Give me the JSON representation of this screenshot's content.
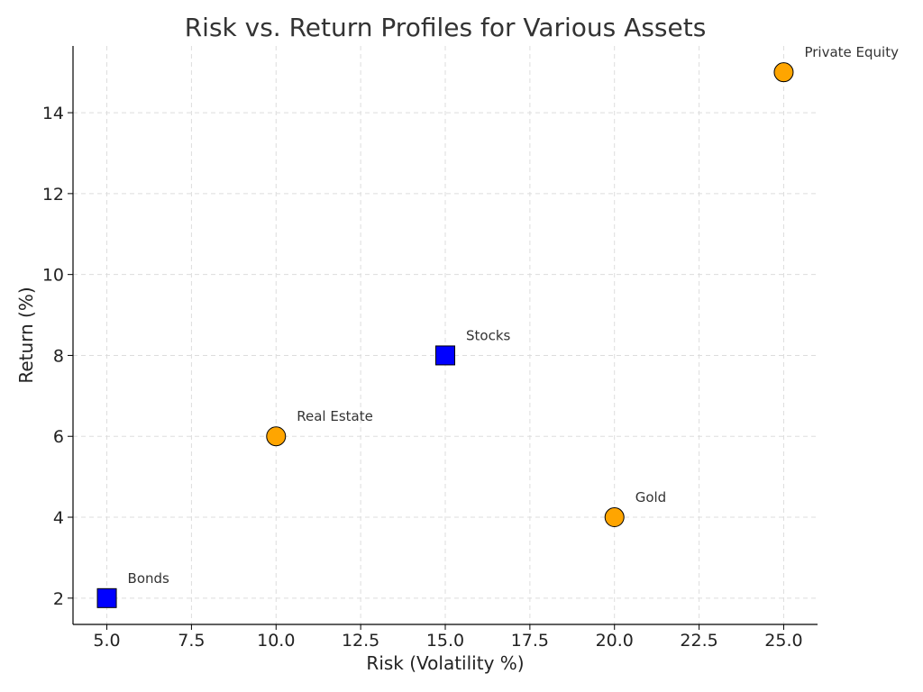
{
  "chart_data": {
    "type": "scatter",
    "title": "Risk vs. Return Profiles for Various Assets",
    "xlabel": "Risk (Volatility %)",
    "ylabel": "Return (%)",
    "xlim": [
      4.0,
      26.0
    ],
    "ylim": [
      1.35,
      15.65
    ],
    "xticks": [
      5.0,
      7.5,
      10.0,
      12.5,
      15.0,
      17.5,
      20.0,
      22.5,
      25.0
    ],
    "xtick_labels": [
      "5.0",
      "7.5",
      "10.0",
      "12.5",
      "15.0",
      "17.5",
      "20.0",
      "22.5",
      "25.0"
    ],
    "yticks": [
      2,
      4,
      6,
      8,
      10,
      12,
      14
    ],
    "ytick_labels": [
      "2",
      "4",
      "6",
      "8",
      "10",
      "12",
      "14"
    ],
    "grid": true,
    "points": [
      {
        "label": "Bonds",
        "x": 5,
        "y": 2,
        "marker": "square",
        "color": "#0000ff"
      },
      {
        "label": "Real Estate",
        "x": 10,
        "y": 6,
        "marker": "circle",
        "color": "#ffa500"
      },
      {
        "label": "Stocks",
        "x": 15,
        "y": 8,
        "marker": "square",
        "color": "#0000ff"
      },
      {
        "label": "Gold",
        "x": 20,
        "y": 4,
        "marker": "circle",
        "color": "#ffa500"
      },
      {
        "label": "Private Equity",
        "x": 25,
        "y": 15,
        "marker": "circle",
        "color": "#ffa500"
      }
    ]
  }
}
